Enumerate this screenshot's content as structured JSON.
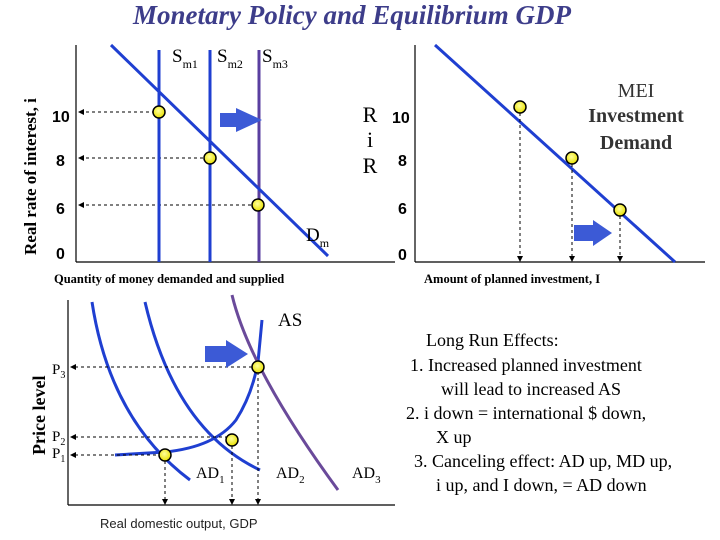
{
  "title": "Monetary Policy and Equilibrium GDP",
  "colors": {
    "title": "#3d3d8a",
    "line": "#1f3fd1",
    "purple": "#5a3fa0",
    "ad3": "#6a4a9a",
    "dot": "#f2ee00",
    "arrow": "#3c5ad6",
    "text": "#000000",
    "rr": "#2a2a2a",
    "ticks": "#000000"
  },
  "money_market": {
    "ylabel": "Real rate of interest, i",
    "xlabel": "Quantity of money demanded and supplied",
    "ticks": [
      "10",
      "8",
      "6",
      "0"
    ],
    "supply_labels": [
      {
        "base": "S",
        "sub": "m1"
      },
      {
        "base": "S",
        "sub": "m2"
      },
      {
        "base": "S",
        "sub": "m3"
      }
    ],
    "demand_label": {
      "base": "D",
      "sub": "m"
    }
  },
  "investment_market": {
    "axis_label_letters": [
      "R",
      "i",
      "R"
    ],
    "xlabel": "Amount of planned investment, I",
    "ticks": [
      "10",
      "8",
      "6",
      "0"
    ],
    "curve_label_lines": [
      "MEI",
      "Investment",
      "Demand"
    ]
  },
  "ad_as": {
    "ylabel": "Price level",
    "xlabel": "Real domestic output, GDP",
    "as_label": "AS",
    "price_ticks": [
      {
        "base": "P",
        "sub": "3"
      },
      {
        "base": "P",
        "sub": "2"
      },
      {
        "base": "P",
        "sub": "1"
      }
    ],
    "ad_labels": [
      {
        "base": "AD",
        "sub": "1"
      },
      {
        "base": "AD",
        "sub": "2"
      },
      {
        "base": "AD",
        "sub": "3"
      }
    ]
  },
  "notes": [
    "Long Run Effects:",
    "1.   Increased planned investment",
    "will lead to increased AS",
    "2. i down = international $ down,",
    "X up",
    "3. Canceling effect: AD up, MD up,",
    "i up, and I down, = AD down"
  ]
}
